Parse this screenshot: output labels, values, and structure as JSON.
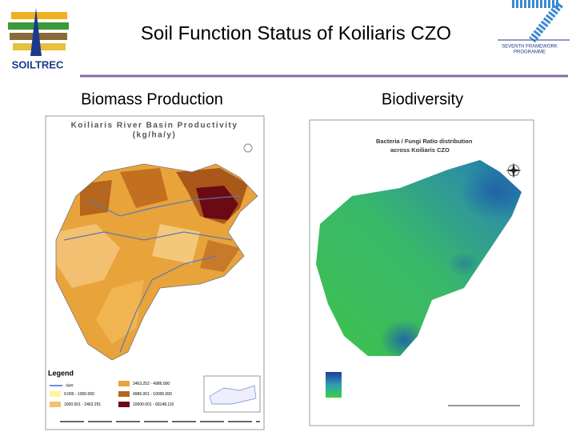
{
  "header": {
    "logo": "SOILTREC",
    "title": "Soil Function Status of Koiliaris CZO",
    "partner_logo": [
      "SEVENTH FRAMEWORK",
      "PROGRAMME"
    ]
  },
  "panels": [
    {
      "heading": "Biomass Production",
      "map_title": "Koiliaris River Basin Productivity",
      "map_subtitle": "(kg/ha/y)",
      "legend_title": "Legend",
      "legend": [
        "river",
        "0.000 - 1000.000",
        "1000.001 - 2463.251",
        "2463.252 - 4986.000",
        "4986.001 - 10000.000",
        "10000.001 - 69148.110"
      ]
    },
    {
      "heading": "Biodiversity",
      "map_title": [
        "Bacteria / Fungi Ratio distribution",
        "across Koiliaris CZO"
      ]
    }
  ]
}
